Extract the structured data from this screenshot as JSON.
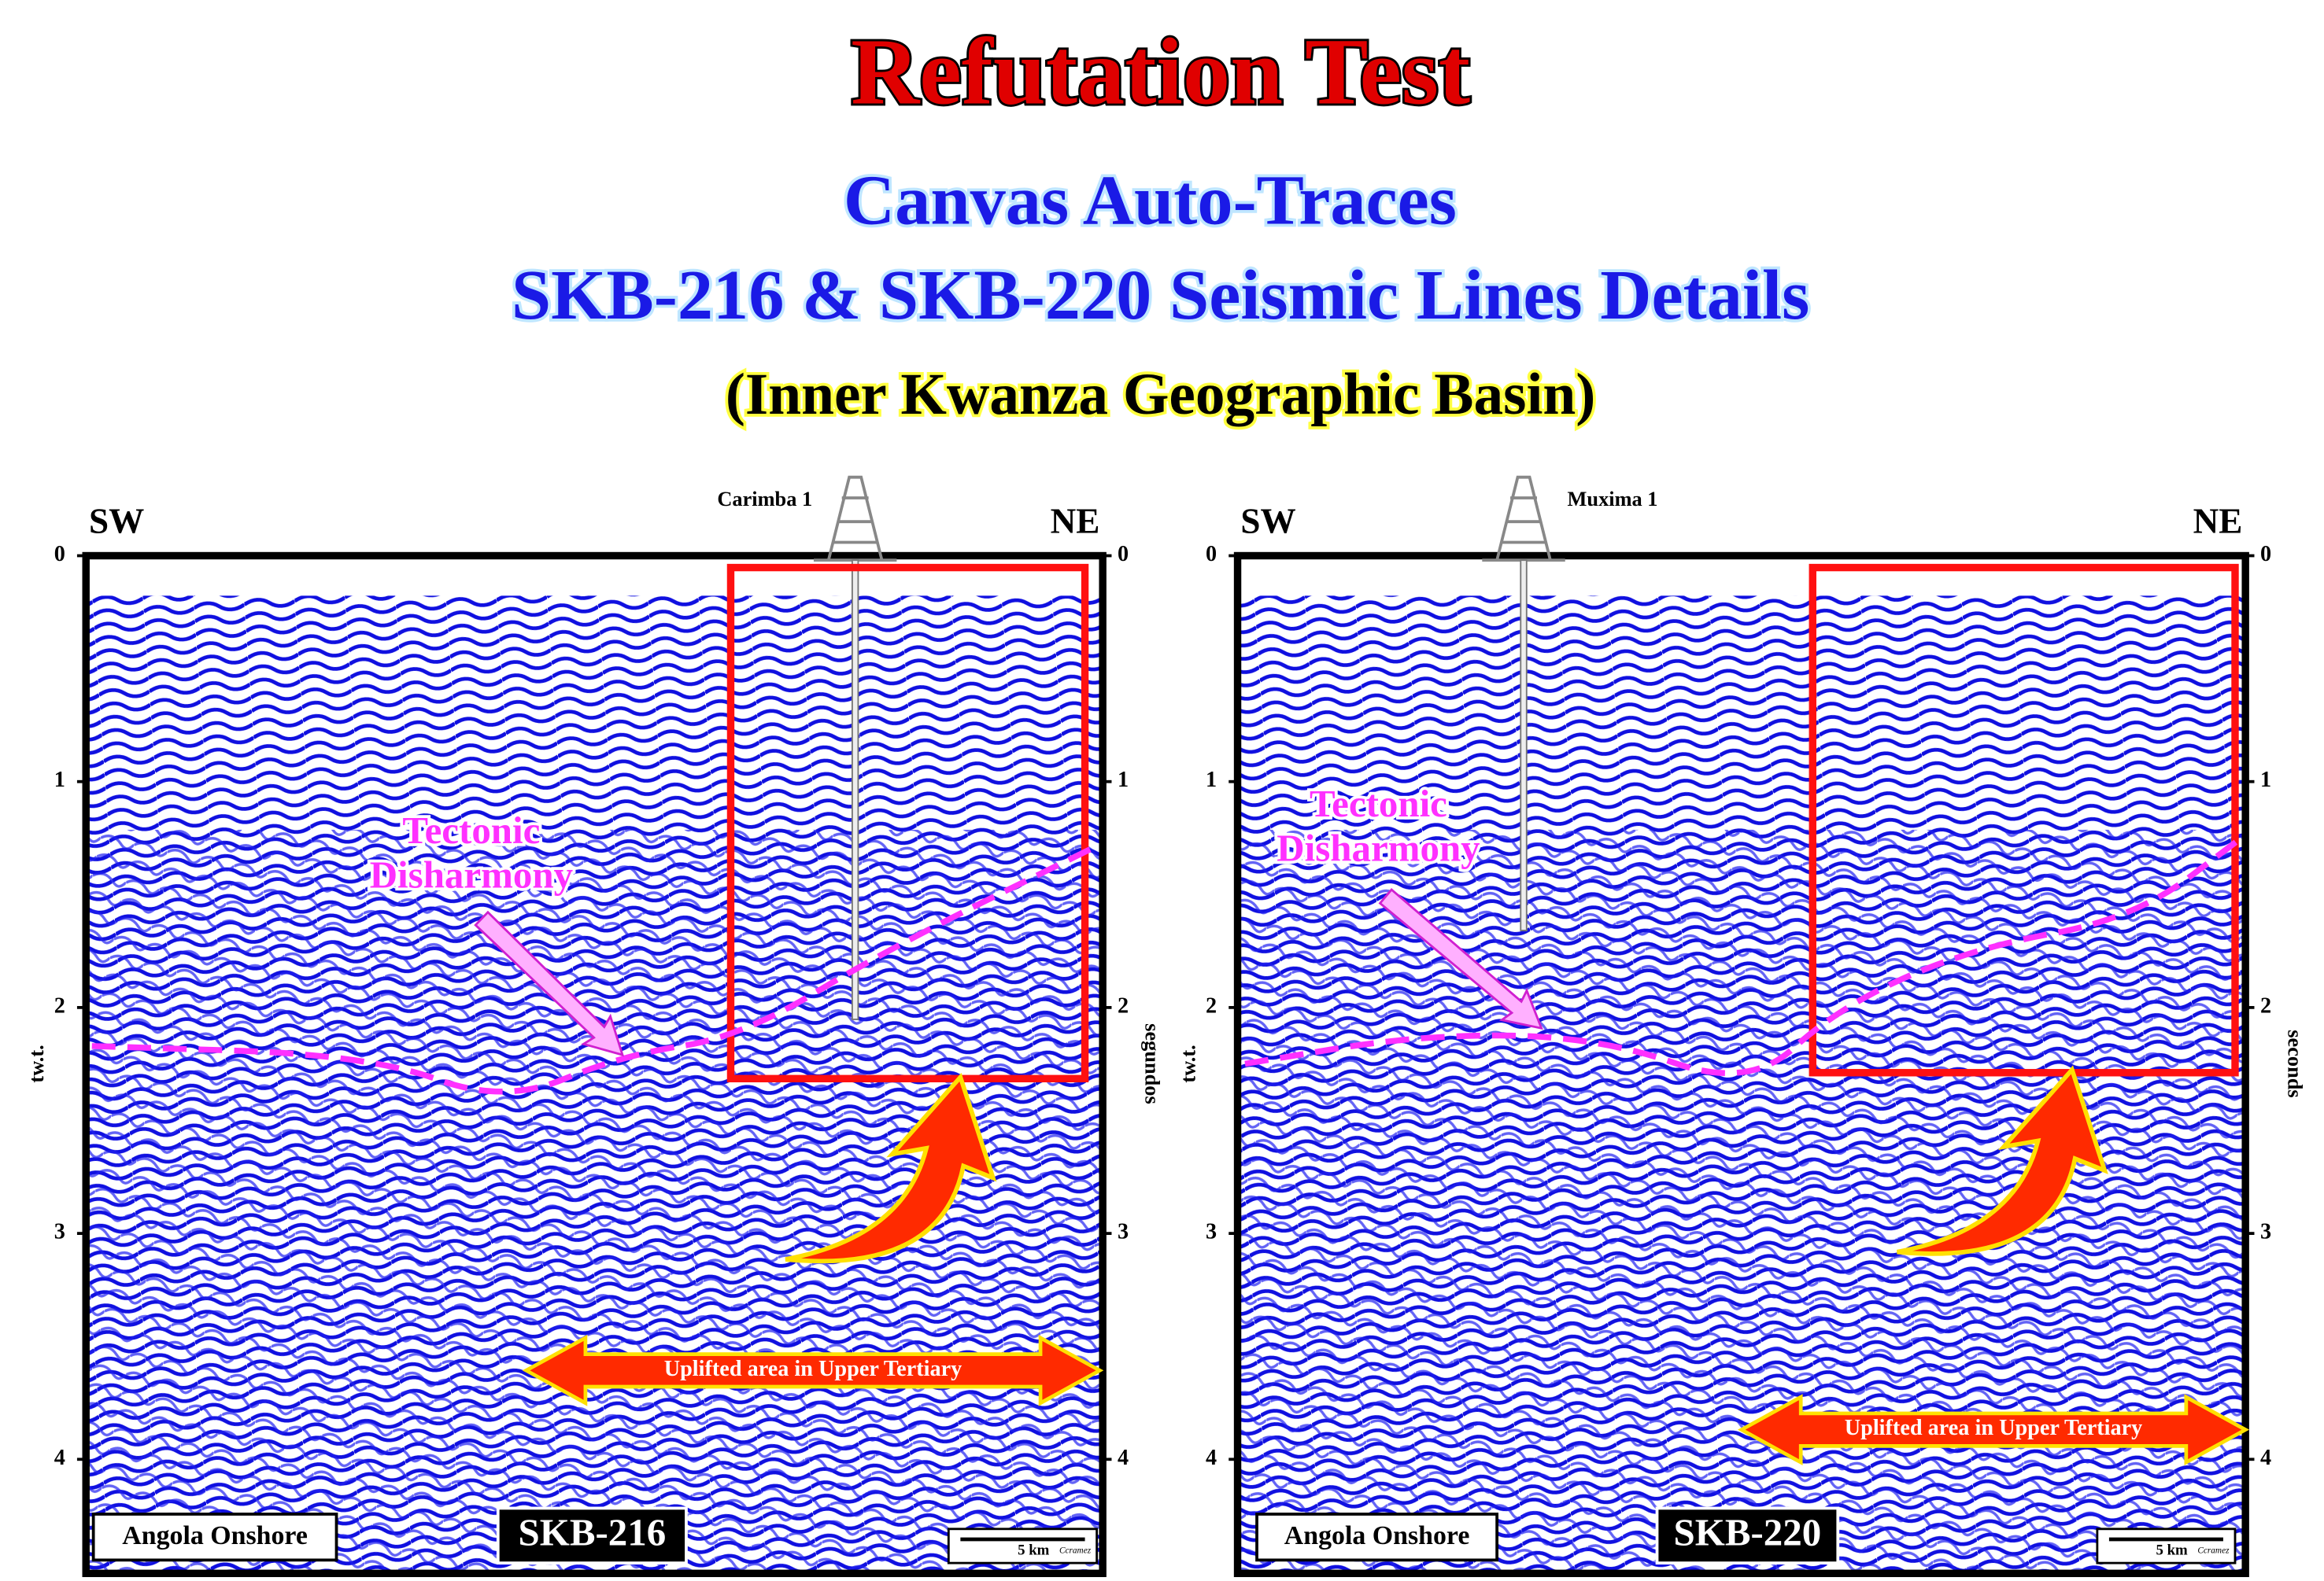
{
  "header": {
    "title": "Refutation Test",
    "subtitle_lines": [
      "Canvas Auto-Traces",
      "SKB-216 & SKB-220 Seismic Lines Details"
    ],
    "region": "(Inner Kwanza Geographic Basin)"
  },
  "panels": [
    {
      "left_direction": "SW",
      "right_direction": "NE",
      "well": "Carimba 1",
      "left_axis_label": "tw.t.",
      "right_axis_label": "segundos",
      "ticks": [
        0,
        1,
        2,
        3,
        4
      ],
      "annotation_lines": [
        "Tectonic",
        "Disharmony"
      ],
      "arrow_label": "Uplifted area in Upper Tertiary",
      "location": "Angola Onshore",
      "line_name": "SKB-216",
      "scale": "5 km",
      "credit": "Ccramez"
    },
    {
      "left_direction": "SW",
      "right_direction": "NE",
      "well": "Muxima 1",
      "left_axis_label": "tw.t.",
      "right_axis_label": "seconds",
      "ticks": [
        0,
        1,
        2,
        3,
        4
      ],
      "annotation_lines": [
        "Tectonic",
        "Disharmony"
      ],
      "arrow_label": "Uplifted area in Upper Tertiary",
      "location": "Angola Onshore",
      "line_name": "SKB-220",
      "scale": "5 km",
      "credit": "Ccramez"
    }
  ]
}
